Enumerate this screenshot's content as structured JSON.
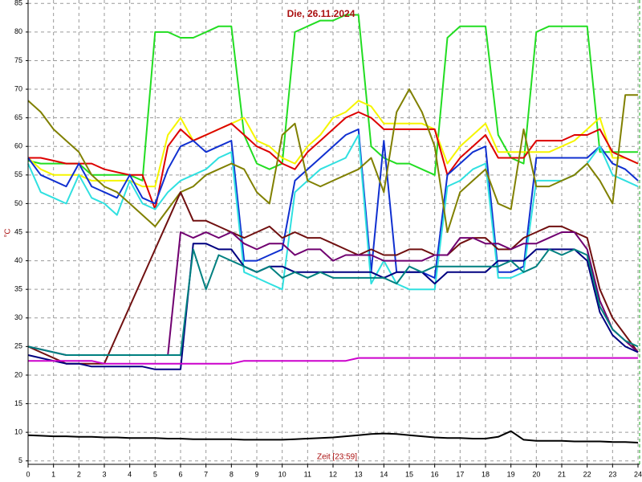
{
  "chart_data": {
    "type": "line",
    "title": "Die, 26.11.2024",
    "y_label": "°C",
    "x_label": "Zeit [23:59]",
    "grid": true,
    "xlim": [
      0,
      24
    ],
    "ylim": [
      4.4,
      85.6
    ],
    "xticks": [
      0,
      1,
      2,
      3,
      4,
      5,
      6,
      7,
      8,
      9,
      10,
      11,
      12,
      13,
      14,
      15,
      16,
      17,
      18,
      19,
      20,
      21,
      22,
      23,
      24
    ],
    "yticks": [
      5,
      10,
      15,
      20,
      25,
      30,
      35,
      40,
      45,
      50,
      55,
      60,
      65,
      70,
      75,
      80,
      85
    ],
    "x": [
      0,
      0.5,
      1,
      1.5,
      2,
      2.5,
      3,
      3.5,
      4,
      4.5,
      5,
      5.5,
      6,
      6.5,
      7,
      7.5,
      8,
      8.5,
      9,
      9.5,
      10,
      10.5,
      11,
      11.5,
      12,
      12.5,
      13,
      13.5,
      14,
      14.5,
      15,
      15.5,
      16,
      16.5,
      17,
      17.5,
      18,
      18.5,
      19,
      19.5,
      20,
      20.5,
      21,
      21.5,
      22,
      22.5,
      23,
      23.5,
      24
    ],
    "series": [
      {
        "color": "#22dd22",
        "values": [
          57.5,
          57,
          57,
          57,
          57,
          55,
          55,
          55,
          55,
          54,
          80,
          80,
          79,
          79,
          80,
          81,
          81,
          62,
          57,
          56,
          57,
          80,
          81,
          82,
          82,
          83,
          83,
          60,
          58,
          57,
          57,
          56,
          55,
          79,
          81,
          81,
          81,
          62,
          58,
          57,
          80,
          81,
          81,
          81,
          81,
          59,
          59,
          59,
          59
        ]
      },
      {
        "color": "#f5f500",
        "values": [
          58,
          56,
          55,
          55,
          55,
          54,
          54,
          54,
          54,
          53,
          53,
          62,
          65,
          61,
          62,
          63,
          64,
          65,
          61,
          60,
          58,
          57,
          60,
          62,
          65,
          66,
          68,
          67,
          64,
          64,
          64,
          64,
          63,
          57,
          60,
          62,
          64,
          59,
          59,
          59,
          59,
          59,
          60,
          61,
          63,
          65,
          58,
          58,
          57
        ]
      },
      {
        "color": "#dd0000",
        "values": [
          58,
          58,
          57.5,
          57,
          57,
          57,
          56,
          55.5,
          55,
          55,
          49,
          60,
          63,
          61,
          62,
          63,
          64,
          62,
          60,
          59,
          57,
          56,
          59,
          61,
          63,
          65,
          66,
          65,
          63,
          63,
          63,
          63,
          63,
          55,
          58,
          60,
          62,
          58,
          58,
          58,
          61,
          61,
          61,
          62,
          62,
          63,
          59,
          58,
          57
        ]
      },
      {
        "color": "#1030d0",
        "values": [
          58,
          55,
          54,
          53,
          57,
          53,
          52,
          51,
          55,
          51,
          50,
          56,
          60,
          61,
          59,
          60,
          61,
          40,
          40,
          41,
          42,
          54,
          56,
          58,
          60,
          62,
          63,
          38,
          61,
          38,
          38,
          38,
          37,
          55,
          57,
          59,
          60,
          38,
          38,
          39,
          58,
          58,
          58,
          58,
          58,
          60,
          57,
          56,
          54
        ]
      },
      {
        "color": "#30e0e0",
        "values": [
          57,
          52,
          51,
          50,
          55,
          51,
          50,
          48,
          54,
          50,
          49,
          52,
          54,
          55,
          56,
          58,
          59,
          38,
          37,
          36,
          35,
          52,
          54,
          56,
          57,
          58,
          62,
          36,
          40,
          36,
          35,
          35,
          35,
          53,
          54,
          56,
          57,
          37,
          37,
          38,
          54,
          54,
          54,
          55,
          57,
          60,
          55,
          54,
          53
        ]
      },
      {
        "color": "#808000",
        "values": [
          68,
          66,
          63,
          61,
          59,
          55,
          53,
          52,
          50,
          48,
          46,
          49,
          52,
          53,
          55,
          56,
          57,
          56,
          52,
          50,
          62,
          64,
          54,
          53,
          54,
          55,
          56,
          58,
          52,
          66,
          70,
          66,
          60,
          45,
          52,
          54,
          56,
          50,
          49,
          63,
          53,
          53,
          54,
          55,
          57,
          54,
          50,
          69,
          69
        ]
      },
      {
        "color": "#701010",
        "values": [
          25,
          24,
          23,
          22,
          22,
          22,
          22,
          27,
          32,
          37,
          42,
          47,
          52,
          47,
          47,
          46,
          45,
          44,
          45,
          46,
          44,
          45,
          44,
          44,
          43,
          42,
          41,
          42,
          41,
          41,
          42,
          42,
          41,
          41,
          43,
          44,
          44,
          42,
          42,
          44,
          45,
          46,
          46,
          45,
          44,
          35,
          30,
          27,
          24
        ]
      },
      {
        "color": "#700070",
        "values": [
          25,
          24.5,
          24,
          23.5,
          23.5,
          23.5,
          23.5,
          23.5,
          23.5,
          23.5,
          23.5,
          23.5,
          45,
          44,
          45,
          44,
          45,
          43,
          42,
          43,
          43,
          41,
          42,
          42,
          40,
          41,
          41,
          41,
          40,
          40,
          40,
          40,
          41,
          41,
          44,
          44,
          43,
          43,
          42,
          43,
          43,
          44,
          45,
          45,
          42,
          33,
          28,
          26,
          24
        ]
      },
      {
        "color": "#000080",
        "values": [
          23.5,
          23,
          22.5,
          22,
          22,
          21.5,
          21.5,
          21.5,
          21.5,
          21.5,
          21,
          21,
          21,
          43,
          43,
          42,
          42,
          39,
          38,
          39,
          39,
          38,
          38,
          38,
          38,
          38,
          38,
          38,
          37,
          38,
          38,
          38,
          36,
          38,
          38,
          38,
          38,
          40,
          40,
          40,
          42,
          42,
          42,
          42,
          40,
          31,
          27,
          25,
          24
        ]
      },
      {
        "color": "#008080",
        "values": [
          25,
          24.5,
          24,
          23.5,
          23.5,
          23.5,
          23.5,
          23.5,
          23.5,
          23.5,
          23.5,
          23.5,
          23.5,
          42,
          35,
          41,
          40,
          39,
          38,
          39,
          37,
          38,
          37,
          38,
          37,
          37,
          37,
          37,
          37,
          36,
          39,
          38,
          39,
          39,
          39,
          39,
          39,
          39,
          40,
          38,
          39,
          42,
          41,
          42,
          41,
          32,
          28,
          26,
          25
        ]
      },
      {
        "color": "#cc00cc",
        "values": [
          22.5,
          22.5,
          22.5,
          22.5,
          22.5,
          22.5,
          22,
          22,
          22,
          22,
          22,
          22,
          22,
          22,
          22,
          22,
          22,
          22.5,
          22.5,
          22.5,
          22.5,
          22.5,
          22.5,
          22.5,
          22.5,
          22.5,
          23,
          23,
          23,
          23,
          23,
          23,
          23,
          23,
          23,
          23,
          23,
          23,
          23,
          23,
          23,
          23,
          23,
          23,
          23,
          23,
          23,
          23,
          23
        ]
      },
      {
        "color": "#000000",
        "values": [
          9.5,
          9.4,
          9.3,
          9.3,
          9.2,
          9.2,
          9.1,
          9.1,
          9,
          9,
          9,
          8.9,
          8.9,
          8.8,
          8.8,
          8.8,
          8.8,
          8.7,
          8.7,
          8.7,
          8.7,
          8.8,
          8.9,
          9,
          9.1,
          9.3,
          9.5,
          9.7,
          9.8,
          9.7,
          9.5,
          9.3,
          9.1,
          9,
          9,
          8.9,
          8.9,
          9.2,
          10.2,
          8.7,
          8.5,
          8.5,
          8.5,
          8.4,
          8.4,
          8.4,
          8.3,
          8.3,
          8.2
        ]
      }
    ]
  }
}
